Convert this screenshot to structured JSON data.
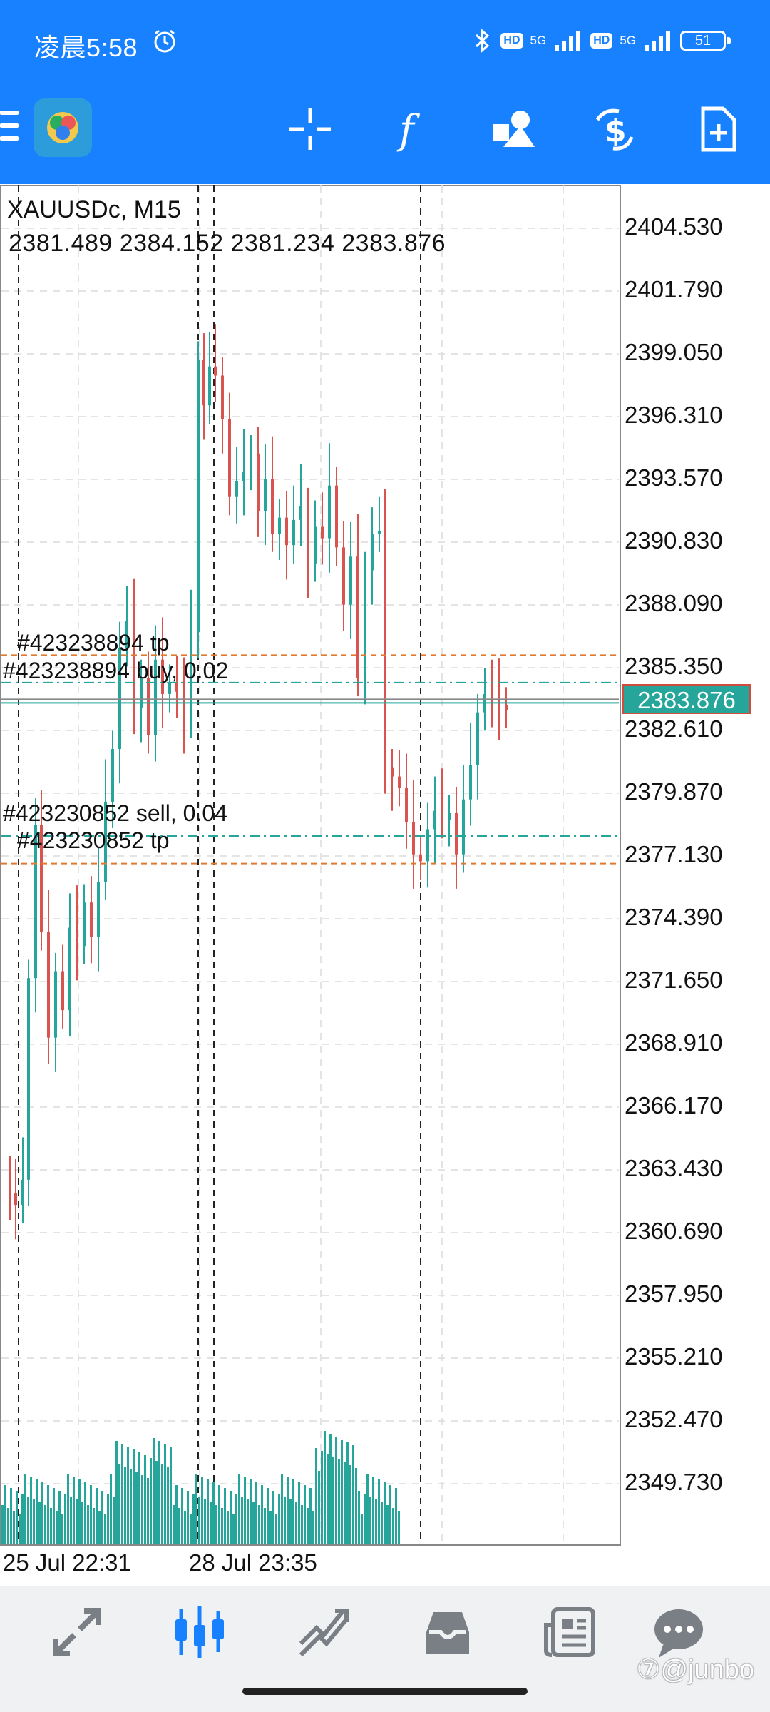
{
  "status_bar": {
    "time": "凌晨5:58",
    "hd1": "HD",
    "net1": "5G",
    "hd2": "HD",
    "net2": "5G",
    "battery": "51"
  },
  "toolbar": {
    "icons": [
      "menu-icon",
      "app-logo",
      "crosshair-icon",
      "indicator-f-icon",
      "objects-icon",
      "trade-icon",
      "new-order-icon"
    ]
  },
  "chart": {
    "symbol": "XAUUSDc, M15",
    "ohlc": "2381.489 2384.152 2381.234 2383.876",
    "current_price": "2383.876",
    "trades": [
      {
        "label": "#423238894 tp"
      },
      {
        "label": "#423238894 buy, 0.02"
      },
      {
        "label": "#423230852 sell, 0.04"
      },
      {
        "label": "#423230852 tp"
      }
    ],
    "price_axis": [
      "2404.530",
      "2401.790",
      "2399.050",
      "2396.310",
      "2393.570",
      "2390.830",
      "2388.090",
      "2385.350",
      "2382.610",
      "2379.870",
      "2377.130",
      "2374.390",
      "2371.650",
      "2368.910",
      "2366.170",
      "2363.430",
      "2360.690",
      "2357.950",
      "2355.210",
      "2352.470",
      "2349.730"
    ],
    "time_axis": [
      "25 Jul 22:31",
      "28 Jul 23:35"
    ],
    "colors": {
      "bull": "#26a69a",
      "bear": "#d9534f",
      "tp_line": "#e07a30",
      "order_line": "#26a69a",
      "grid": "#dcdcdc"
    }
  },
  "bottom_nav": {
    "items": [
      "quotes-icon",
      "chart-icon",
      "trade-icon",
      "history-icon",
      "news-icon",
      "messages-icon"
    ]
  },
  "watermark": "⑦@junbo"
}
